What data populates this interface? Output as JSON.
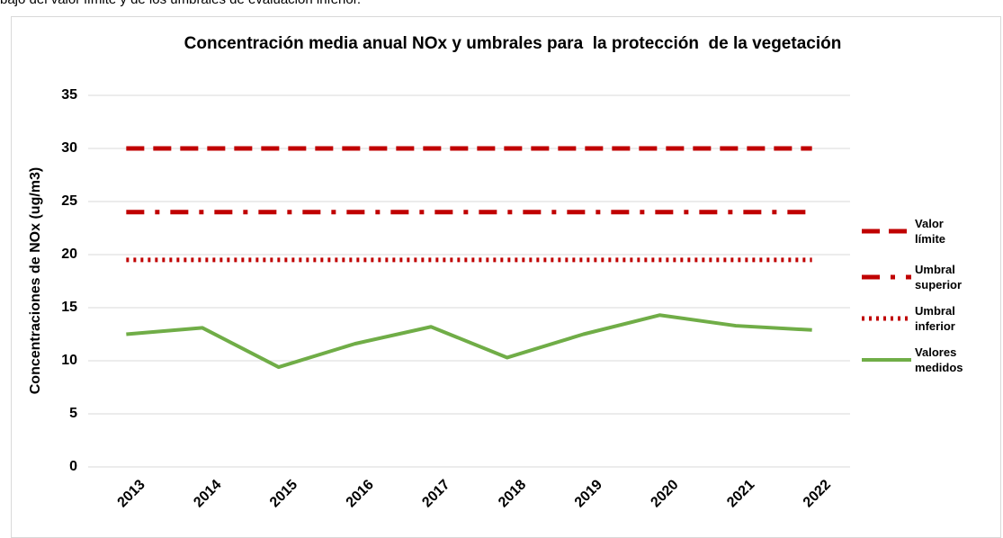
{
  "header_text": "bajo del valor límite y de los umbrales de evaluación inferior.",
  "chart_data": {
    "type": "line",
    "title": "Concentración media anual NOx y umbrales para  la protección  de la vegetación",
    "y_label": "Concentraciones de NOx (ug/m3)",
    "categories": [
      "2013",
      "2014",
      "2015",
      "2016",
      "2017",
      "2018",
      "2019",
      "2020",
      "2021",
      "2022"
    ],
    "series": [
      {
        "name": "Valor límite",
        "color": "#c00000",
        "dash": "dash",
        "values": [
          30,
          30,
          30,
          30,
          30,
          30,
          30,
          30,
          30,
          30
        ]
      },
      {
        "name": "Umbral superior",
        "color": "#c00000",
        "dash": "dashdot",
        "values": [
          24,
          24,
          24,
          24,
          24,
          24,
          24,
          24,
          24,
          24
        ]
      },
      {
        "name": "Umbral inferior",
        "color": "#c00000",
        "dash": "dot",
        "values": [
          19.5,
          19.5,
          19.5,
          19.5,
          19.5,
          19.5,
          19.5,
          19.5,
          19.5,
          19.5
        ]
      },
      {
        "name": "Valores medidos",
        "color": "#70ad47",
        "dash": "solid",
        "values": [
          12.5,
          13.1,
          9.4,
          11.6,
          13.2,
          10.3,
          12.5,
          14.3,
          13.3,
          12.9
        ]
      }
    ],
    "ylim": [
      0,
      35
    ],
    "yticks": [
      0,
      5,
      10,
      15,
      20,
      25,
      30,
      35
    ],
    "grid": true,
    "legend": "right"
  }
}
